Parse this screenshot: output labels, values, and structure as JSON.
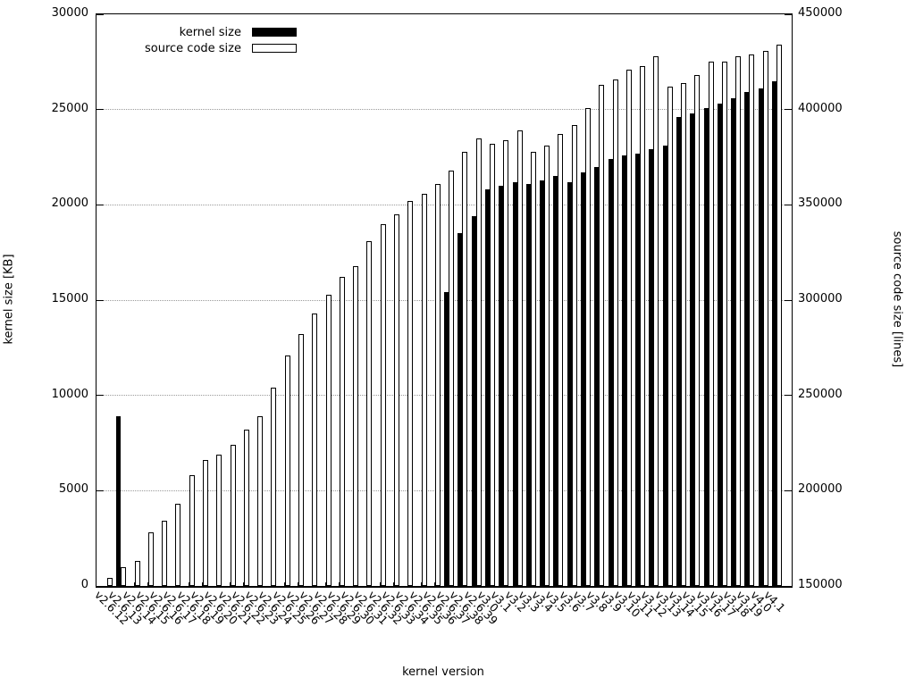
{
  "chart_data": {
    "type": "bar",
    "title": "",
    "xlabel": "kernel version",
    "ylabel_left": "kernel size [KB]",
    "ylabel_right": "source code size [lines]",
    "grid": "horizontal dotted gray lines at every left-axis step of 5000",
    "legend_position": "top-left inside plot",
    "axis_left": {
      "min": 0,
      "max": 30000,
      "ticks": [
        0,
        5000,
        10000,
        15000,
        20000,
        25000,
        30000
      ]
    },
    "axis_right": {
      "min": 150000,
      "max": 450000,
      "ticks": [
        150000,
        200000,
        250000,
        300000,
        350000,
        400000,
        450000
      ]
    },
    "categories": [
      "v2.6.12",
      "v2.6.13",
      "v2.6.14",
      "v2.6.15",
      "v2.6.16",
      "v2.6.17",
      "v2.6.18",
      "v2.6.19",
      "v2.6.20",
      "v2.6.21",
      "v2.6.22",
      "v2.6.23",
      "v2.6.24",
      "v2.6.25",
      "v2.6.26",
      "v2.6.27",
      "v2.6.28",
      "v2.6.29",
      "v2.6.30",
      "v2.6.31",
      "v2.6.32",
      "v2.6.33",
      "v2.6.34",
      "v2.6.35",
      "v2.6.36",
      "v2.6.37",
      "v2.6.38",
      "v2.6.39",
      "v3.0",
      "v3.1",
      "v3.2",
      "v3.3",
      "v3.4",
      "v3.5",
      "v3.6",
      "v3.7",
      "v3.8",
      "v3.9",
      "v3.10",
      "v3.11",
      "v3.12",
      "v3.13",
      "v3.14",
      "v3.15",
      "v3.16",
      "v3.17",
      "v3.18",
      "v3.19",
      "v4.0",
      "v4.1"
    ],
    "series": [
      {
        "name": "kernel size",
        "axis": "left",
        "style": "filled-black",
        "values": [
          0,
          8900,
          0,
          0,
          0,
          0,
          0,
          0,
          0,
          0,
          0,
          0,
          0,
          0,
          0,
          0,
          0,
          0,
          0,
          0,
          0,
          0,
          0,
          0,
          0,
          15400,
          18500,
          19400,
          20800,
          21000,
          21200,
          21100,
          21300,
          21500,
          21200,
          21700,
          22000,
          22400,
          22600,
          22700,
          22900,
          23100,
          24600,
          24800,
          25100,
          25300,
          25600,
          25900,
          26100,
          26500
        ]
      },
      {
        "name": "source code size",
        "axis": "right",
        "style": "white-outlined",
        "values": [
          154000,
          160000,
          163000,
          178000,
          184000,
          193000,
          208000,
          216000,
          219000,
          224000,
          232000,
          239000,
          254000,
          271000,
          282000,
          293000,
          303000,
          312000,
          318000,
          331000,
          340000,
          345000,
          352000,
          356000,
          361000,
          368000,
          378000,
          385000,
          382000,
          384000,
          389000,
          378000,
          381000,
          387000,
          392000,
          401000,
          413000,
          416000,
          421000,
          423000,
          428000,
          412000,
          414000,
          418000,
          425000,
          425000,
          428000,
          429000,
          431000,
          434000
        ]
      }
    ]
  }
}
